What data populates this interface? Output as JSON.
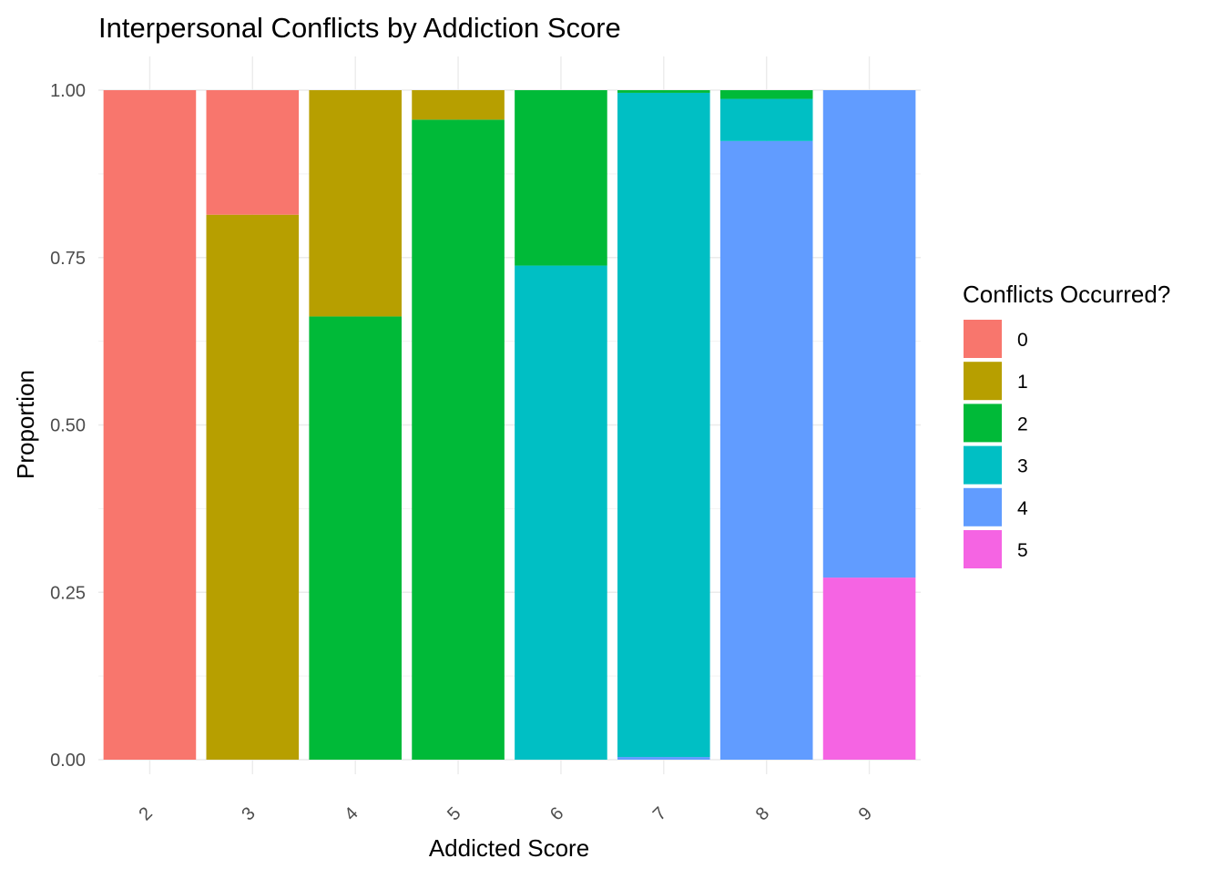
{
  "chart_data": {
    "type": "bar",
    "stacked": true,
    "position": "fill",
    "title": "Interpersonal Conflicts by Addiction Score",
    "xlabel": "Addicted Score",
    "ylabel": "Proportion",
    "categories": [
      "2",
      "3",
      "4",
      "5",
      "6",
      "7",
      "8",
      "9"
    ],
    "ylim": [
      0,
      1
    ],
    "yticks": [
      "0.00",
      "0.25",
      "0.50",
      "0.75",
      "1.00"
    ],
    "yticks_values": [
      0,
      0.25,
      0.5,
      0.75,
      1.0
    ],
    "grid": true,
    "legend": {
      "title": "Conflicts Occurred?",
      "position": "right"
    },
    "series": [
      {
        "name": "0",
        "color": "#F8766D",
        "values": [
          1.0,
          0.186,
          0,
          0,
          0,
          0,
          0,
          0
        ]
      },
      {
        "name": "1",
        "color": "#B79F00",
        "values": [
          0,
          0.814,
          0.338,
          0.044,
          0,
          0,
          0,
          0
        ]
      },
      {
        "name": "2",
        "color": "#00BA38",
        "values": [
          0,
          0,
          0.662,
          0.956,
          0.262,
          0.004,
          0.013,
          0
        ]
      },
      {
        "name": "3",
        "color": "#00BFC4",
        "values": [
          0,
          0,
          0,
          0,
          0.738,
          0.992,
          0.063,
          0
        ]
      },
      {
        "name": "4",
        "color": "#619CFF",
        "values": [
          0,
          0,
          0,
          0,
          0,
          0.004,
          0.924,
          0.728
        ]
      },
      {
        "name": "5",
        "color": "#F564E3",
        "values": [
          0,
          0,
          0,
          0,
          0,
          0,
          0,
          0.272
        ]
      }
    ]
  }
}
